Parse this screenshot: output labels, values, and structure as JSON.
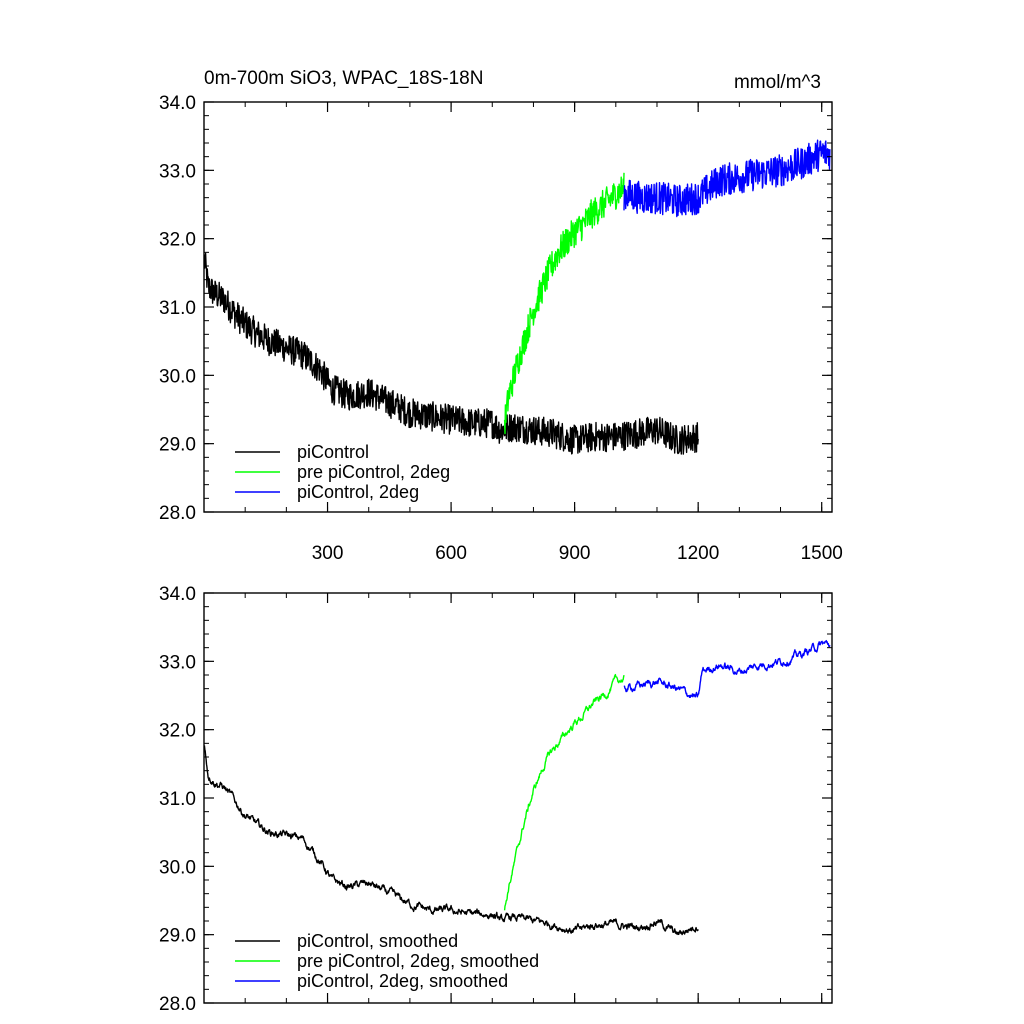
{
  "chart_data": [
    {
      "type": "line",
      "title": "0m-700m SiO3, WPAC_18S-18N",
      "units": "mmol/m^3",
      "xlim": [
        0,
        1525
      ],
      "ylim": [
        28.0,
        34.0
      ],
      "y_ticks": [
        "28.0",
        "29.0",
        "30.0",
        "31.0",
        "32.0",
        "33.0",
        "34.0"
      ],
      "y_tick_values": [
        28,
        29,
        30,
        31,
        32,
        33,
        34
      ],
      "x_ticks": [
        "300",
        "600",
        "900",
        "1200",
        "1500"
      ],
      "x_tick_values": [
        300,
        600,
        900,
        1200,
        1500
      ],
      "grid": false,
      "legend_position": "bottom-left",
      "series": [
        {
          "name": "piControl",
          "color": "#000000",
          "x": [
            1,
            10,
            25,
            50,
            75,
            100,
            130,
            160,
            200,
            240,
            280,
            310,
            350,
            400,
            450,
            500,
            550,
            600,
            650,
            700,
            720,
            750,
            800,
            850,
            900,
            950,
            1000,
            1050,
            1100,
            1150,
            1200
          ],
          "values": [
            31.7,
            31.3,
            31.2,
            31.1,
            30.9,
            30.75,
            30.6,
            30.5,
            30.4,
            30.3,
            30.1,
            29.8,
            29.7,
            29.75,
            29.6,
            29.45,
            29.4,
            29.35,
            29.3,
            29.3,
            29.2,
            29.25,
            29.2,
            29.15,
            29.05,
            29.1,
            29.1,
            29.15,
            29.2,
            29.05,
            29.1
          ],
          "noise": 0.22
        },
        {
          "name": "pre piControl, 2deg",
          "color": "#00ff00",
          "x": [
            730,
            740,
            760,
            780,
            800,
            820,
            840,
            860,
            880,
            900,
            920,
            940,
            960,
            980,
            1000,
            1020
          ],
          "values": [
            29.3,
            29.7,
            30.15,
            30.55,
            30.95,
            31.25,
            31.55,
            31.8,
            31.95,
            32.1,
            32.2,
            32.35,
            32.45,
            32.55,
            32.65,
            32.75
          ],
          "noise": 0.22
        },
        {
          "name": "piControl, 2deg",
          "color": "#0000ff",
          "x": [
            1020,
            1060,
            1100,
            1150,
            1200,
            1250,
            1300,
            1350,
            1400,
            1450,
            1500,
            1520
          ],
          "values": [
            32.65,
            32.6,
            32.6,
            32.55,
            32.6,
            32.85,
            32.9,
            32.95,
            33.0,
            33.1,
            33.25,
            33.25
          ],
          "noise": 0.24
        }
      ]
    },
    {
      "type": "line",
      "xlim": [
        0,
        1525
      ],
      "ylim": [
        28.0,
        34.0
      ],
      "y_ticks": [
        "28.0",
        "29.0",
        "30.0",
        "31.0",
        "32.0",
        "33.0",
        "34.0"
      ],
      "y_tick_values": [
        28,
        29,
        30,
        31,
        32,
        33,
        34
      ],
      "x_tick_values": [
        300,
        600,
        900,
        1200,
        1500
      ],
      "grid": false,
      "legend_position": "bottom-left",
      "series": [
        {
          "name": "piControl, smoothed",
          "color": "#000000",
          "x": [
            1,
            10,
            25,
            50,
            75,
            100,
            130,
            160,
            200,
            240,
            280,
            310,
            350,
            400,
            450,
            500,
            550,
            600,
            650,
            700,
            720,
            750,
            800,
            850,
            900,
            950,
            1000,
            1050,
            1100,
            1150,
            1200
          ],
          "values": [
            31.75,
            31.35,
            31.25,
            31.15,
            30.95,
            30.75,
            30.6,
            30.5,
            30.45,
            30.4,
            30.1,
            29.8,
            29.7,
            29.75,
            29.6,
            29.45,
            29.35,
            29.35,
            29.3,
            29.3,
            29.2,
            29.25,
            29.2,
            29.15,
            29.05,
            29.15,
            29.15,
            29.1,
            29.2,
            29.0,
            29.15
          ],
          "noise": 0.07
        },
        {
          "name": "pre piControl, 2deg, smoothed",
          "color": "#00ff00",
          "x": [
            730,
            740,
            760,
            780,
            800,
            820,
            840,
            860,
            880,
            900,
            920,
            940,
            960,
            980,
            1000,
            1020
          ],
          "values": [
            29.35,
            29.7,
            30.2,
            30.7,
            31.1,
            31.4,
            31.65,
            31.8,
            31.95,
            32.1,
            32.2,
            32.35,
            32.45,
            32.55,
            32.7,
            32.75
          ],
          "noise": 0.07
        },
        {
          "name": "piControl, 2deg, smoothed",
          "color": "#0000ff",
          "x": [
            1020,
            1060,
            1100,
            1150,
            1200,
            1210,
            1250,
            1300,
            1350,
            1400,
            1450,
            1500,
            1520
          ],
          "values": [
            32.6,
            32.65,
            32.7,
            32.6,
            32.45,
            32.85,
            32.95,
            32.85,
            32.95,
            33.0,
            33.1,
            33.25,
            33.25
          ],
          "noise": 0.07
        }
      ]
    }
  ]
}
